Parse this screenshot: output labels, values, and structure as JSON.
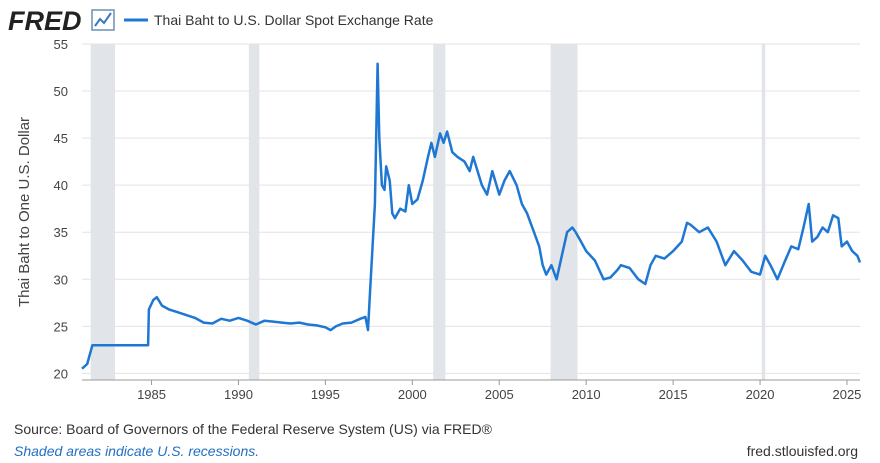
{
  "brand": "FRED",
  "chart_data": {
    "type": "line",
    "title": "Thai Baht to U.S. Dollar Spot Exchange Rate",
    "ylabel": "Thai Baht to One U.S. Dollar",
    "source": "Source: Board of Governors of the Federal Reserve System (US) via FRED®",
    "note": "Shaded areas indicate U.S. recessions.",
    "site": "fred.stlouisfed.org",
    "xlim": [
      1981,
      2025.75
    ],
    "ylim": [
      19.3,
      55
    ],
    "xticks": [
      1985,
      1990,
      1995,
      2000,
      2005,
      2010,
      2015,
      2020,
      2025
    ],
    "yticks": [
      20,
      25,
      30,
      35,
      40,
      45,
      50,
      55
    ],
    "grid": true,
    "recessions": [
      {
        "start": 1981.5,
        "end": 1982.9
      },
      {
        "start": 1990.6,
        "end": 1991.2
      },
      {
        "start": 2001.2,
        "end": 2001.9
      },
      {
        "start": 2007.95,
        "end": 2009.5
      },
      {
        "start": 2020.1,
        "end": 2020.3
      }
    ],
    "series": [
      {
        "name": "Thai Baht to U.S. Dollar Spot Exchange Rate",
        "color": "#1f77d4",
        "x": [
          1981.0,
          1981.3,
          1981.6,
          1982,
          1984.8,
          1984.85,
          1985.1,
          1985.3,
          1985.6,
          1986,
          1986.5,
          1987,
          1987.5,
          1988,
          1988.5,
          1989,
          1989.5,
          1990,
          1990.5,
          1991,
          1991.5,
          1992,
          1992.5,
          1993,
          1993.5,
          1994,
          1994.5,
          1995,
          1995.3,
          1995.6,
          1996,
          1996.5,
          1997,
          1997.3,
          1997.45,
          1997.55,
          1997.7,
          1997.85,
          1998.0,
          1998.1,
          1998.25,
          1998.4,
          1998.5,
          1998.7,
          1998.85,
          1999,
          1999.3,
          1999.6,
          1999.8,
          2000,
          2000.3,
          2000.6,
          2000.9,
          2001.1,
          2001.3,
          2001.6,
          2001.8,
          2002,
          2002.3,
          2002.6,
          2003,
          2003.3,
          2003.5,
          2004,
          2004.3,
          2004.6,
          2005,
          2005.3,
          2005.6,
          2006,
          2006.3,
          2006.6,
          2007,
          2007.3,
          2007.5,
          2007.7,
          2008,
          2008.3,
          2008.6,
          2008.9,
          2009.2,
          2009.4,
          2009.7,
          2010,
          2010.5,
          2011,
          2011.4,
          2011.8,
          2012,
          2012.5,
          2013,
          2013.4,
          2013.7,
          2014,
          2014.5,
          2015,
          2015.5,
          2015.8,
          2016,
          2016.5,
          2017,
          2017.5,
          2018,
          2018.5,
          2019,
          2019.5,
          2020,
          2020.3,
          2020.6,
          2021,
          2021.4,
          2021.8,
          2022.2,
          2022.5,
          2022.8,
          2023,
          2023.3,
          2023.6,
          2023.9,
          2024.2,
          2024.5,
          2024.7,
          2025,
          2025.3,
          2025.6,
          2025.75
        ],
        "values": [
          20.5,
          21.0,
          23.0,
          23.0,
          23.0,
          26.8,
          27.8,
          28.1,
          27.2,
          26.8,
          26.5,
          26.2,
          25.9,
          25.4,
          25.3,
          25.8,
          25.6,
          25.9,
          25.6,
          25.2,
          25.6,
          25.5,
          25.4,
          25.3,
          25.4,
          25.2,
          25.1,
          24.9,
          24.6,
          25.0,
          25.3,
          25.4,
          25.8,
          26.0,
          24.6,
          28.0,
          33.0,
          38.0,
          52.9,
          45.0,
          40.0,
          39.5,
          42.0,
          40.5,
          37.0,
          36.5,
          37.5,
          37.2,
          40.0,
          38.0,
          38.5,
          40.5,
          43.0,
          44.5,
          43.0,
          45.5,
          44.5,
          45.7,
          43.5,
          43.0,
          42.5,
          41.5,
          43.0,
          40.0,
          39.0,
          41.5,
          39.0,
          40.5,
          41.5,
          40.0,
          38.0,
          37.0,
          35.0,
          33.5,
          31.5,
          30.5,
          31.5,
          30.0,
          32.5,
          35.0,
          35.5,
          35.0,
          34.0,
          33.0,
          32.0,
          30.0,
          30.2,
          31.0,
          31.5,
          31.2,
          30.0,
          29.5,
          31.5,
          32.5,
          32.2,
          33.0,
          34.0,
          36.0,
          35.8,
          35.0,
          35.5,
          34.0,
          31.5,
          33.0,
          32.0,
          30.8,
          30.5,
          32.5,
          31.5,
          30.0,
          31.8,
          33.5,
          33.2,
          35.5,
          38.0,
          34.0,
          34.5,
          35.5,
          35.0,
          36.8,
          36.5,
          33.5,
          34.0,
          33.0,
          32.5,
          31.8
        ]
      }
    ]
  }
}
